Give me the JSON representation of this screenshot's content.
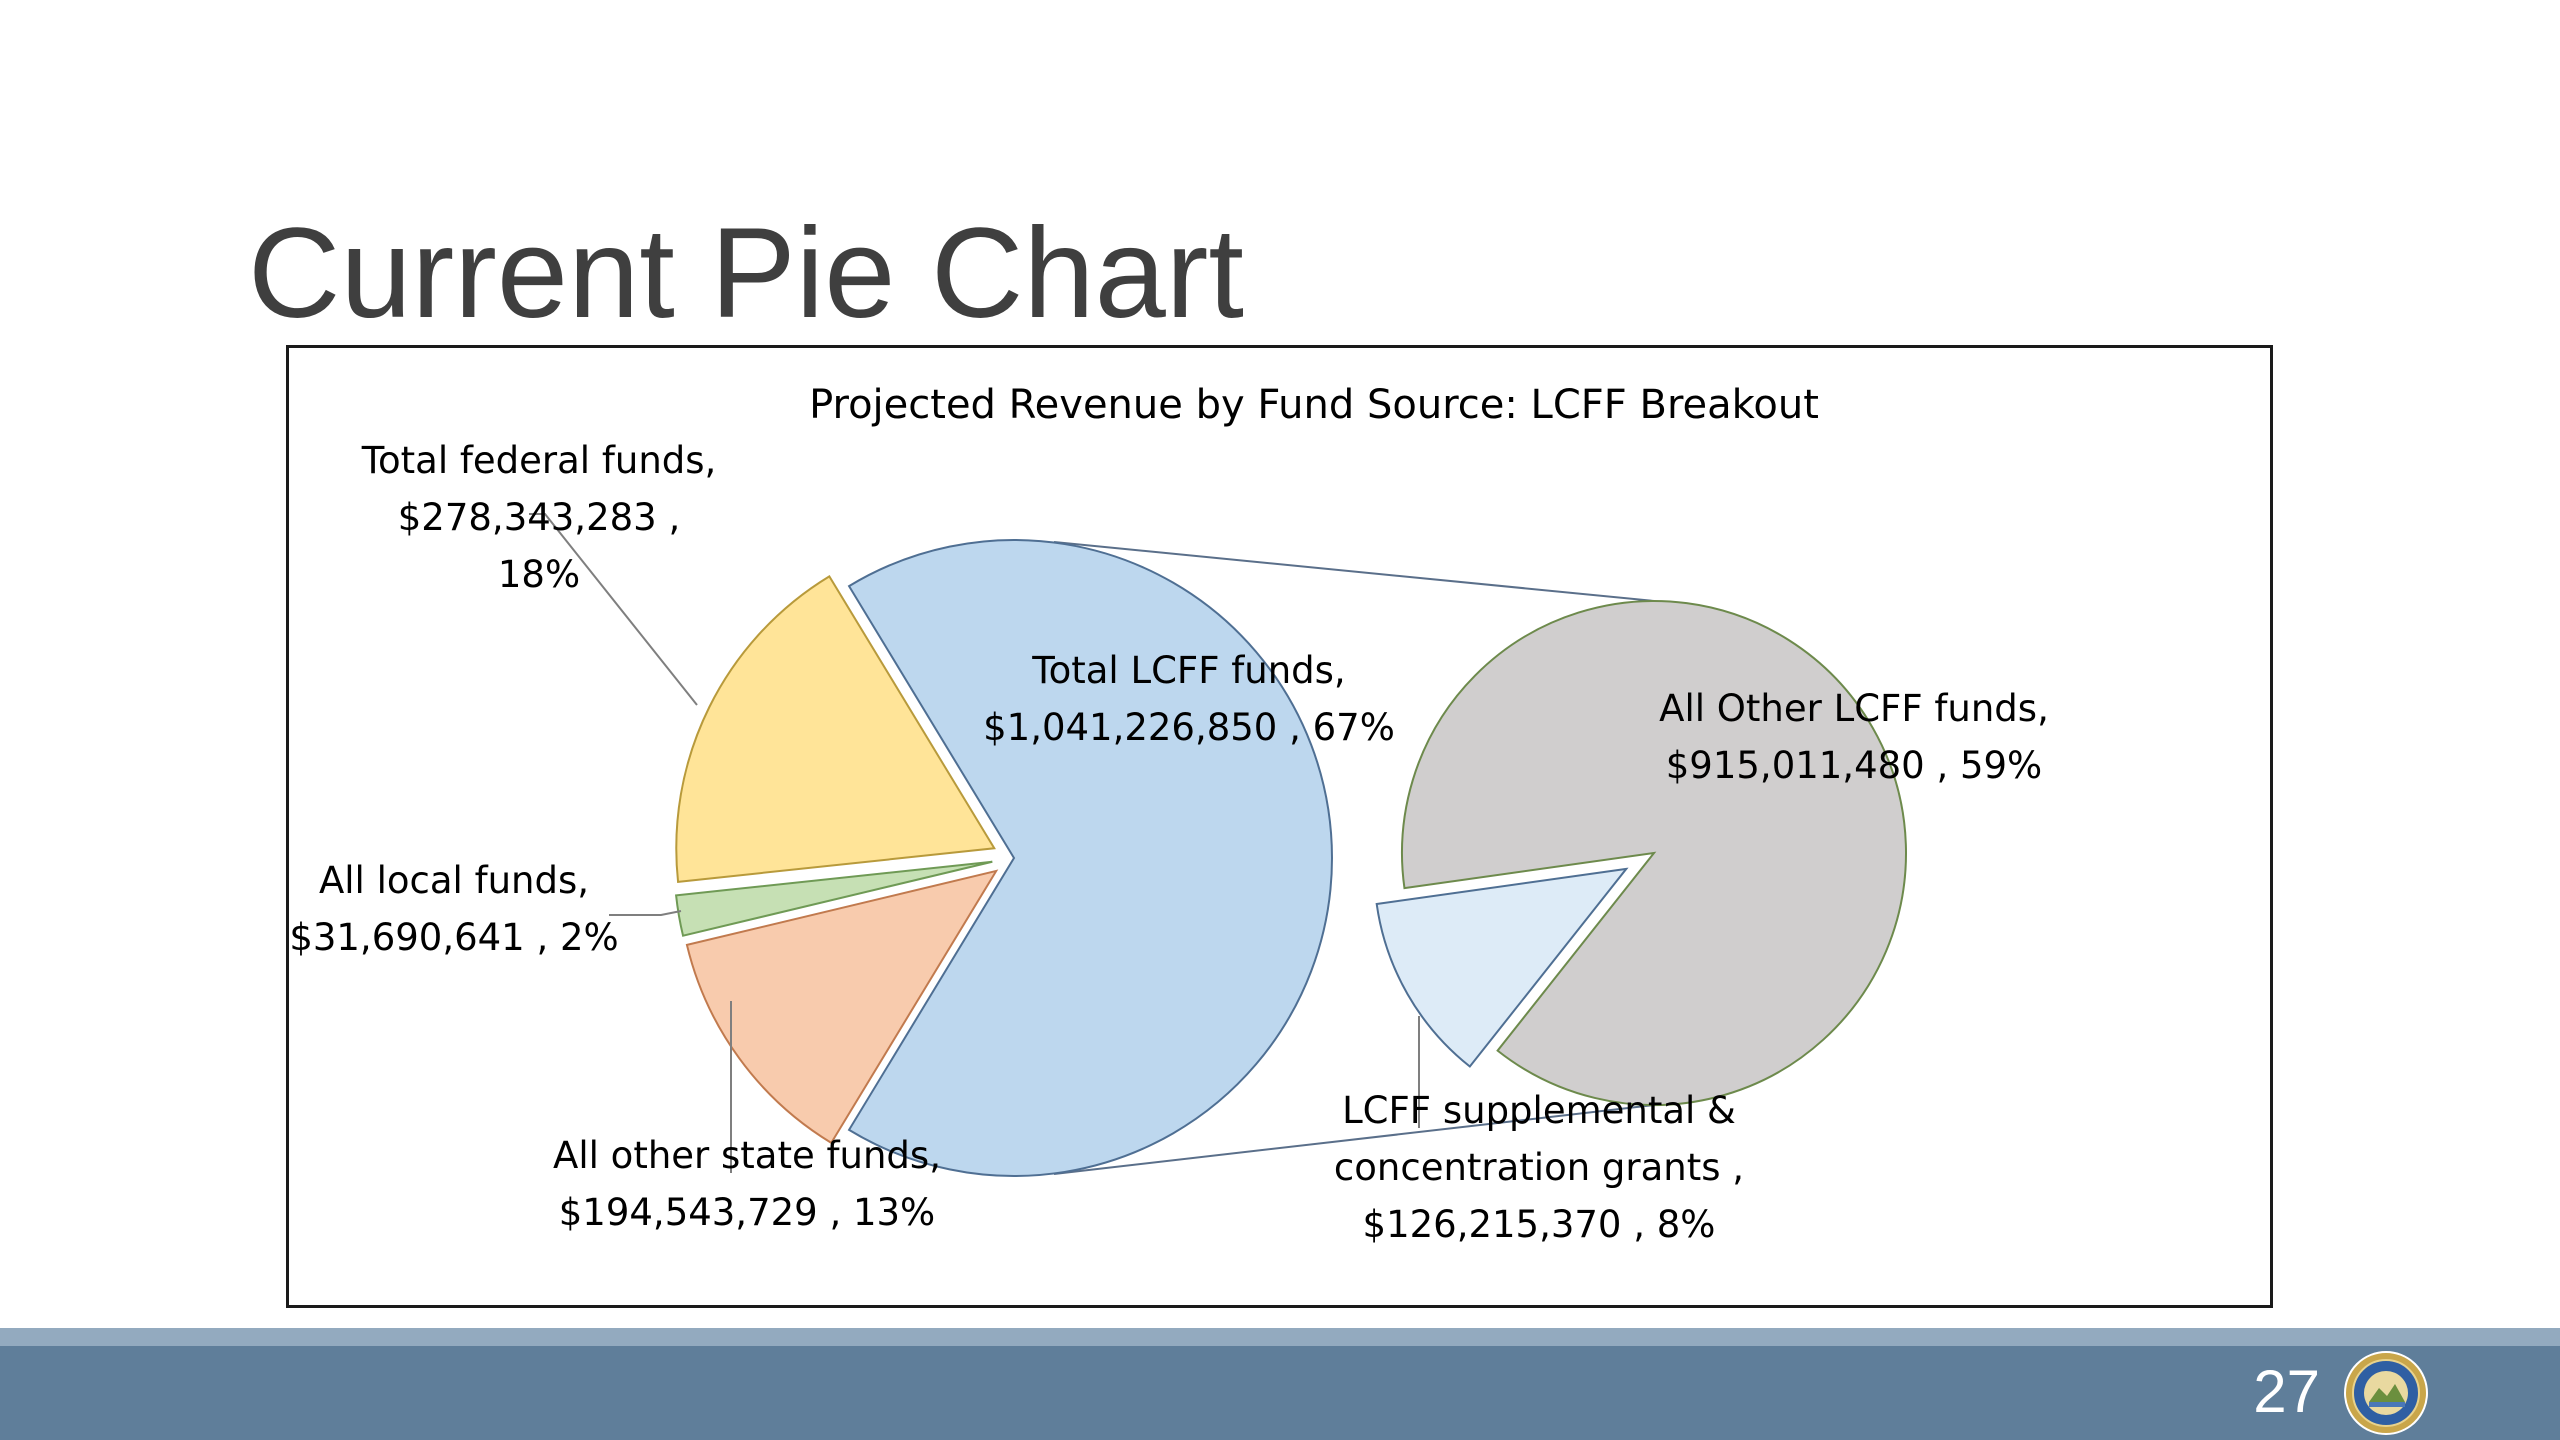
{
  "slide": {
    "title": "Current Pie Chart",
    "page_number": "27"
  },
  "chart_data": {
    "type": "pie",
    "subtype": "pie-of-pie",
    "title": "Projected Revenue by Fund Source: LCFF Breakout",
    "primary": {
      "slices": [
        {
          "label_lines": [
            "Total LCFF funds,",
            "$1,041,226,850 , 67%"
          ],
          "value": 1041226850,
          "percent": 67,
          "color": "#bdd7ee",
          "stroke": "#4f6f93"
        },
        {
          "label_lines": [
            "Total federal funds,",
            "$278,343,283 ,",
            "18%"
          ],
          "value": 278343283,
          "percent": 18,
          "color": "#ffe498",
          "stroke": "#b89a3b"
        },
        {
          "label_lines": [
            "All local funds,",
            "$31,690,641 , 2%"
          ],
          "value": 31690641,
          "percent": 2,
          "color": "#c6e0b4",
          "stroke": "#6f9a55"
        },
        {
          "label_lines": [
            "All other state funds,",
            "$194,543,729 , 13%"
          ],
          "value": 194543729,
          "percent": 13,
          "color": "#f8cbad",
          "stroke": "#c17a4e"
        }
      ]
    },
    "secondary": {
      "slices": [
        {
          "label_lines": [
            "All Other LCFF funds,",
            "$915,011,480 , 59%"
          ],
          "value": 915011480,
          "percent": 59,
          "color": "#d0cece",
          "stroke": "#6d8a4c"
        },
        {
          "label_lines": [
            "LCFF supplemental &",
            "concentration grants ,",
            "$126,215,370 , 8%"
          ],
          "value": 126215370,
          "percent": 8,
          "color": "#ddebf7",
          "stroke": "#4f6f93"
        }
      ]
    }
  },
  "colors": {
    "footer": "#5f7e9a",
    "footer_stripe": "#93aabf",
    "title_text": "#3f3f3f"
  },
  "logo": {
    "icon": "state-seal-icon"
  }
}
